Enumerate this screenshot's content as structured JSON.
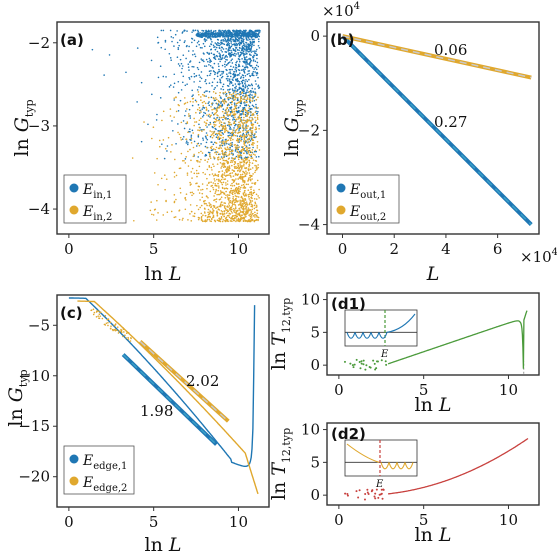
{
  "colors": {
    "blue": "#1f77b4",
    "gold": "#e0a82e",
    "dash": "#3aa0c8",
    "green": "#4a9a3a",
    "red": "#c8413e",
    "frame": "#333333"
  },
  "chart_data": [
    {
      "panel": "(a)",
      "type": "scatter",
      "xlabel_main": "ln",
      "xlabel_var": "L",
      "ylabel_main": "ln",
      "ylabel_var": "G",
      "ylabel_sub": "typ",
      "xlim": [
        -0.7,
        11.8
      ],
      "ylim": [
        -4.3,
        -1.75
      ],
      "xticks": [
        0,
        5,
        10
      ],
      "yticks": [
        -2,
        -3,
        -4
      ],
      "legend": [
        {
          "main": "E",
          "sub": "in,1",
          "color": "#1f77b4"
        },
        {
          "main": "E",
          "sub": "in,2",
          "color": "#e0a82e"
        }
      ],
      "series": [
        {
          "name_main": "E",
          "name_sub": "in,1",
          "color": "#1f77b4",
          "band": [
            -3.4,
            -1.85
          ]
        },
        {
          "name_main": "E",
          "name_sub": "in,2",
          "color": "#e0a82e",
          "band": [
            -4.15,
            -2.2
          ]
        }
      ]
    },
    {
      "panel": "(b)",
      "type": "line",
      "xlabel_var": "L",
      "ylabel_main": "ln",
      "ylabel_var": "G",
      "ylabel_sub": "typ",
      "x_multiplier": "×10",
      "x_multiplier_exp": "4",
      "y_multiplier": "×10",
      "y_multiplier_exp": "4",
      "xlim": [
        -0.6,
        7.6
      ],
      "ylim": [
        -4.2,
        0.3
      ],
      "xticks": [
        0,
        2,
        4,
        6
      ],
      "yticks": [
        0,
        -2,
        -4
      ],
      "legend": [
        {
          "main": "E",
          "sub": "out,1",
          "color": "#1f77b4"
        },
        {
          "main": "E",
          "sub": "out,2",
          "color": "#e0a82e"
        }
      ],
      "series": [
        {
          "name_main": "E",
          "name_sub": "out,1",
          "color": "#1f77b4",
          "x": [
            0,
            7.3
          ],
          "y": [
            0,
            -4.0
          ]
        },
        {
          "name_main": "E",
          "name_sub": "out,2",
          "color": "#e0a82e",
          "x": [
            0,
            7.3
          ],
          "y": [
            0,
            -0.88
          ]
        }
      ],
      "annotations": [
        "0.06",
        "0.27"
      ]
    },
    {
      "panel": "(c)",
      "type": "line",
      "xlabel_main": "ln",
      "xlabel_var": "L",
      "ylabel_main": "ln",
      "ylabel_var": "G",
      "ylabel_sub": "typ",
      "xlim": [
        -0.7,
        11.8
      ],
      "ylim": [
        -23,
        -2
      ],
      "xticks": [
        0,
        5,
        10
      ],
      "yticks": [
        -5,
        -10,
        -15,
        -20
      ],
      "legend": [
        {
          "main": "E",
          "sub": "edge,1",
          "color": "#1f77b4"
        },
        {
          "main": "E",
          "sub": "edge,2",
          "color": "#e0a82e"
        }
      ],
      "series": [
        {
          "name_main": "E",
          "name_sub": "edge,1",
          "color": "#1f77b4",
          "slope": 1.98
        },
        {
          "name_main": "E",
          "name_sub": "edge,2",
          "color": "#e0a82e",
          "slope": 2.02
        }
      ],
      "annotations": [
        "2.02",
        "1.98"
      ]
    },
    {
      "panel": "(d1)",
      "type": "line",
      "xlabel_main": "ln",
      "xlabel_var": "L",
      "ylabel_main": "ln",
      "ylabel_var": "T",
      "ylabel_sub": "12,typ",
      "xlim": [
        -0.7,
        11.8
      ],
      "ylim": [
        -1.5,
        11
      ],
      "xticks": [
        0,
        5,
        10
      ],
      "yticks": [
        0,
        5,
        10
      ],
      "inset_xlabel": "E",
      "color": "#4a9a3a"
    },
    {
      "panel": "(d2)",
      "type": "line",
      "xlabel_main": "ln",
      "xlabel_var": "L",
      "ylabel_main": "ln",
      "ylabel_var": "T",
      "ylabel_sub": "12,typ",
      "xlim": [
        -0.7,
        11.8
      ],
      "ylim": [
        -1.5,
        11
      ],
      "xticks": [
        0,
        5,
        10
      ],
      "yticks": [
        0,
        5,
        10
      ],
      "inset_xlabel": "E",
      "color": "#c8413e"
    }
  ]
}
